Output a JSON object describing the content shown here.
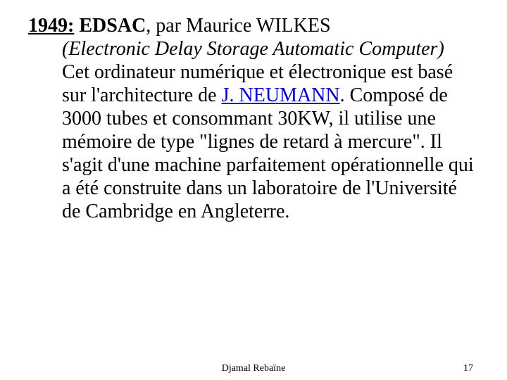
{
  "title": {
    "year": "1949:",
    "name": "EDSAC",
    "author_intro": ", par Maurice WILKES"
  },
  "subtitle": "(Electronic Delay Storage Automatic Computer)",
  "body": {
    "pre_link": "Cet ordinateur numérique et électronique est basé sur l'architecture de ",
    "link": "J. NEUMANN",
    "post_link": ". Composé de 3000 tubes et consommant 30KW, il utilise une mémoire de type \"lignes de retard à mercure\". Il s'agit d'une machine parfaitement opérationnelle qui a été construite dans un laboratoire de l'Université de Cambridge en Angleterre."
  },
  "footer": {
    "author": "Djamal Rebaïne",
    "page": "17"
  },
  "colors": {
    "text": "#000000",
    "link": "#0000cc",
    "background": "#ffffff"
  },
  "fonts": {
    "body_size_pt": 21,
    "footer_size_pt": 11,
    "family": "Times New Roman"
  }
}
